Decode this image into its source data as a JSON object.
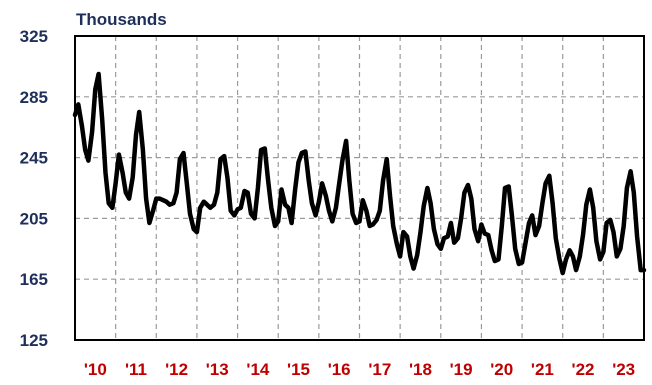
{
  "chart_data": {
    "type": "line",
    "title": "",
    "ylabel": "Thousands",
    "xlabel": "",
    "ylim": [
      125,
      325
    ],
    "yticks": [
      325,
      285,
      245,
      205,
      165,
      125
    ],
    "xlim": [
      2010,
      2024
    ],
    "xtick_labels": [
      "'10",
      "'11",
      "'12",
      "'13",
      "'14",
      "'15",
      "'16",
      "'17",
      "'18",
      "'19",
      "'20",
      "'21",
      "'22",
      "'23"
    ],
    "grid": true,
    "colors": {
      "line": "#000000",
      "x_ticks": "#c00000",
      "y_ticks": "#1f2f5c",
      "grid": "#9a9a9a"
    },
    "series": [
      {
        "points": [
          [
            2010.0,
            273
          ],
          [
            2010.08,
            280
          ],
          [
            2010.17,
            266
          ],
          [
            2010.25,
            250
          ],
          [
            2010.33,
            243
          ],
          [
            2010.42,
            262
          ],
          [
            2010.5,
            290
          ],
          [
            2010.58,
            300
          ],
          [
            2010.67,
            270
          ],
          [
            2010.75,
            235
          ],
          [
            2010.83,
            215
          ],
          [
            2010.92,
            212
          ],
          [
            2011.0,
            228
          ],
          [
            2011.08,
            247
          ],
          [
            2011.17,
            235
          ],
          [
            2011.25,
            222
          ],
          [
            2011.33,
            218
          ],
          [
            2011.42,
            232
          ],
          [
            2011.5,
            260
          ],
          [
            2011.58,
            275
          ],
          [
            2011.67,
            250
          ],
          [
            2011.75,
            218
          ],
          [
            2011.83,
            202
          ],
          [
            2011.92,
            210
          ],
          [
            2012.0,
            218
          ],
          [
            2012.08,
            218
          ],
          [
            2012.17,
            217
          ],
          [
            2012.25,
            216
          ],
          [
            2012.33,
            214
          ],
          [
            2012.42,
            215
          ],
          [
            2012.5,
            222
          ],
          [
            2012.58,
            244
          ],
          [
            2012.67,
            248
          ],
          [
            2012.75,
            228
          ],
          [
            2012.83,
            208
          ],
          [
            2012.92,
            198
          ],
          [
            2013.0,
            196
          ],
          [
            2013.08,
            212
          ],
          [
            2013.17,
            216
          ],
          [
            2013.25,
            214
          ],
          [
            2013.33,
            212
          ],
          [
            2013.42,
            214
          ],
          [
            2013.5,
            222
          ],
          [
            2013.58,
            244
          ],
          [
            2013.67,
            246
          ],
          [
            2013.75,
            232
          ],
          [
            2013.83,
            210
          ],
          [
            2013.92,
            207
          ],
          [
            2014.0,
            211
          ],
          [
            2014.08,
            212
          ],
          [
            2014.17,
            223
          ],
          [
            2014.25,
            222
          ],
          [
            2014.33,
            208
          ],
          [
            2014.42,
            205
          ],
          [
            2014.5,
            225
          ],
          [
            2014.58,
            250
          ],
          [
            2014.67,
            251
          ],
          [
            2014.75,
            230
          ],
          [
            2014.83,
            212
          ],
          [
            2014.92,
            200
          ],
          [
            2015.0,
            203
          ],
          [
            2015.08,
            224
          ],
          [
            2015.17,
            214
          ],
          [
            2015.25,
            212
          ],
          [
            2015.33,
            202
          ],
          [
            2015.42,
            225
          ],
          [
            2015.5,
            242
          ],
          [
            2015.58,
            248
          ],
          [
            2015.67,
            249
          ],
          [
            2015.75,
            230
          ],
          [
            2015.83,
            215
          ],
          [
            2015.92,
            207
          ],
          [
            2016.0,
            216
          ],
          [
            2016.08,
            228
          ],
          [
            2016.17,
            220
          ],
          [
            2016.25,
            210
          ],
          [
            2016.33,
            203
          ],
          [
            2016.42,
            212
          ],
          [
            2016.5,
            228
          ],
          [
            2016.58,
            243
          ],
          [
            2016.67,
            256
          ],
          [
            2016.75,
            230
          ],
          [
            2016.83,
            208
          ],
          [
            2016.92,
            202
          ],
          [
            2017.0,
            203
          ],
          [
            2017.08,
            217
          ],
          [
            2017.17,
            210
          ],
          [
            2017.25,
            200
          ],
          [
            2017.33,
            201
          ],
          [
            2017.42,
            204
          ],
          [
            2017.5,
            210
          ],
          [
            2017.58,
            230
          ],
          [
            2017.67,
            244
          ],
          [
            2017.75,
            220
          ],
          [
            2017.83,
            200
          ],
          [
            2017.92,
            188
          ],
          [
            2018.0,
            180
          ],
          [
            2018.08,
            196
          ],
          [
            2018.17,
            193
          ],
          [
            2018.25,
            180
          ],
          [
            2018.33,
            172
          ],
          [
            2018.42,
            181
          ],
          [
            2018.5,
            196
          ],
          [
            2018.58,
            213
          ],
          [
            2018.67,
            225
          ],
          [
            2018.75,
            215
          ],
          [
            2018.83,
            198
          ],
          [
            2018.92,
            188
          ],
          [
            2019.0,
            185
          ],
          [
            2019.08,
            192
          ],
          [
            2019.17,
            193
          ],
          [
            2019.25,
            202
          ],
          [
            2019.33,
            189
          ],
          [
            2019.42,
            192
          ],
          [
            2019.5,
            205
          ],
          [
            2019.58,
            222
          ],
          [
            2019.67,
            227
          ],
          [
            2019.75,
            218
          ],
          [
            2019.83,
            198
          ],
          [
            2019.92,
            190
          ],
          [
            2020.0,
            201
          ],
          [
            2020.08,
            195
          ],
          [
            2020.17,
            194
          ],
          [
            2020.25,
            184
          ],
          [
            2020.33,
            177
          ],
          [
            2020.42,
            178
          ],
          [
            2020.5,
            200
          ],
          [
            2020.58,
            225
          ],
          [
            2020.67,
            226
          ],
          [
            2020.75,
            207
          ],
          [
            2020.83,
            185
          ],
          [
            2020.92,
            175
          ],
          [
            2021.0,
            176
          ],
          [
            2021.08,
            188
          ],
          [
            2021.17,
            202
          ],
          [
            2021.25,
            207
          ],
          [
            2021.33,
            194
          ],
          [
            2021.42,
            200
          ],
          [
            2021.5,
            215
          ],
          [
            2021.58,
            228
          ],
          [
            2021.67,
            233
          ],
          [
            2021.75,
            215
          ],
          [
            2021.83,
            192
          ],
          [
            2021.92,
            178
          ],
          [
            2022.0,
            169
          ],
          [
            2022.08,
            178
          ],
          [
            2022.17,
            184
          ],
          [
            2022.25,
            180
          ],
          [
            2022.33,
            171
          ],
          [
            2022.42,
            180
          ],
          [
            2022.5,
            194
          ],
          [
            2022.58,
            214
          ],
          [
            2022.67,
            224
          ],
          [
            2022.75,
            212
          ],
          [
            2022.83,
            190
          ],
          [
            2022.92,
            178
          ],
          [
            2023.0,
            183
          ],
          [
            2023.08,
            202
          ],
          [
            2023.17,
            204
          ],
          [
            2023.25,
            196
          ],
          [
            2023.33,
            180
          ],
          [
            2023.42,
            185
          ],
          [
            2023.5,
            200
          ],
          [
            2023.58,
            225
          ],
          [
            2023.67,
            236
          ],
          [
            2023.75,
            222
          ],
          [
            2023.83,
            193
          ],
          [
            2023.92,
            171
          ],
          [
            2024.0,
            171
          ]
        ]
      }
    ]
  }
}
